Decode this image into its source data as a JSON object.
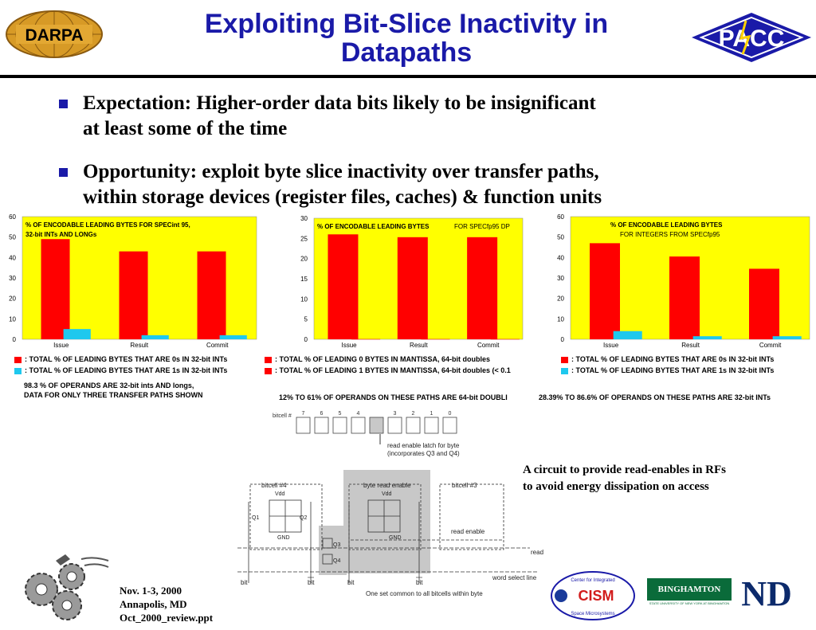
{
  "header": {
    "title_line1": "Exploiting Bit-Slice Inactivity in",
    "title_line2": "Datapaths",
    "left_logo_text": "DARPA",
    "right_logo_text": "PACC"
  },
  "bullets": [
    {
      "line1": "Expectation: Higher-order data bits likely to be insignificant",
      "line2": "at least some of the time"
    },
    {
      "line1": "Opportunity: exploit byte slice inactivity over transfer paths,",
      "line2": "within storage devices (register files, caches) & function units"
    }
  ],
  "colors": {
    "title": "#1a1aa8",
    "chart_bg": "#ffff00",
    "series_zeros": "#ff0000",
    "series_ones": "#1ec8ee"
  },
  "chart_data": [
    {
      "type": "bar",
      "title": "% OF ENCODABLE LEADING BYTES FOR SPECint 95, 32-bit INTs AND LONGs",
      "title_line1": "% OF ENCODABLE LEADING BYTES FOR SPECint 95,",
      "title_line2": "32-bit INTs AND LONGs",
      "categories": [
        "Issue",
        "Result",
        "Commit"
      ],
      "ylim": [
        0,
        60
      ],
      "yticks": [
        0,
        10,
        20,
        30,
        40,
        50,
        60
      ],
      "series": [
        {
          "name": ": TOTAL % OF LEADING BYTES THAT ARE 0s IN 32-bit INTs",
          "values": [
            49,
            43,
            43
          ]
        },
        {
          "name": ": TOTAL % OF LEADING BYTES THAT ARE 1s IN 32-bit INTs",
          "values": [
            5,
            2,
            2
          ]
        }
      ],
      "note_line1": "98.3 % OF OPERANDS ARE 32-bit ints AND longs,",
      "note_line2": "DATA FOR ONLY THREE TRANSFER PATHS SHOWN"
    },
    {
      "type": "bar",
      "title": "% OF ENCODABLE LEADING BYTES FOR SPECfp95 DP",
      "title_line1": "% OF ENCODABLE LEADING BYTES",
      "title_suffix": "FOR SPECfp95 DP",
      "categories": [
        "Issue",
        "Result",
        "Commit"
      ],
      "ylim": [
        0,
        30
      ],
      "yticks": [
        0,
        5,
        10,
        15,
        20,
        25,
        30
      ],
      "series": [
        {
          "name": ": TOTAL % OF LEADING 0 BYTES IN MANTISSA, 64-bit doubles",
          "values": [
            26,
            25.3,
            25.3
          ]
        },
        {
          "name": ": TOTAL % OF LEADING 1 BYTES IN MANTISSA, 64-bit doubles (< 0.1",
          "values": [
            0.05,
            0.05,
            0.05
          ]
        }
      ],
      "note_line1": "12% TO  61% OF OPERANDS ON THESE PATHS ARE 64-bit DOUBLI"
    },
    {
      "type": "bar",
      "title": "% OF ENCODABLE LEADING BYTES FOR INTEGERS FROM SPECfp95",
      "title_line1": "% OF ENCODABLE LEADING BYTES",
      "title_line2": "FOR INTEGERS FROM SPECfp95",
      "categories": [
        "Issue",
        "Result",
        "Commit"
      ],
      "ylim": [
        0,
        60
      ],
      "yticks": [
        0,
        10,
        20,
        30,
        40,
        50,
        60
      ],
      "series": [
        {
          "name": ": TOTAL % OF LEADING BYTES THAT ARE 0s IN 32-bit INTs",
          "values": [
            47,
            40.5,
            34.5
          ]
        },
        {
          "name": ": TOTAL % OF LEADING BYTES THAT ARE 1s IN 32-bit INTs",
          "values": [
            4,
            1.5,
            1.5
          ]
        }
      ],
      "note_line1": "28.39% TO  86.6% OF OPERANDS ON THESE PATHS ARE 32-bit INTs"
    }
  ],
  "circuit": {
    "bitcell_label": "bitcell  #",
    "bit_numbers": [
      "7",
      "6",
      "5",
      "4",
      "",
      "3",
      "2",
      "1",
      "0"
    ],
    "latch_label_line1": "read enable latch for byte",
    "latch_label_line2": "(incorporates Q3 and Q4)",
    "bitcell4": "bitcell #4",
    "byte_read_enable": "byte read enable",
    "bitcell3": "bitcell #3",
    "vdd": "Vdd",
    "gnd": "GND",
    "q1": "Q1",
    "q2": "Q2",
    "q3": "Q3",
    "q4": "Q4",
    "read_enable": "read enable",
    "read": "read",
    "word_select": "word select line",
    "bit": "bit",
    "bit_bar": "bit",
    "common_note": "One set common to all bitcells within byte"
  },
  "caption": {
    "line1": "A circuit to provide read-enables in RFs",
    "line2": "to avoid energy dissipation on access"
  },
  "footer": {
    "line1": "Nov. 1-3, 2000",
    "line2": "Annapolis, MD",
    "line3": "Oct_2000_review.ppt"
  },
  "logos": {
    "cism_top": "Center for Integrated",
    "cism_main": "CISM",
    "cism_bottom": "Space Microsystems",
    "binghamton": "BINGHAMTON",
    "binghamton_sub": "STATE UNIVERSITY OF NEW YORK AT BINGHAMTON",
    "nd": "ND"
  }
}
